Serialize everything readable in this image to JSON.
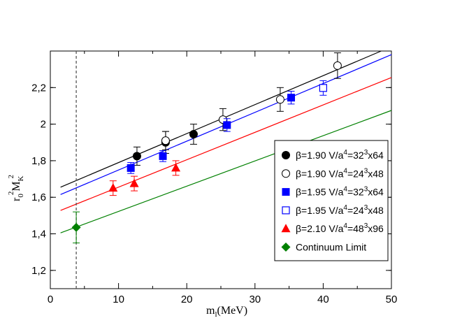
{
  "chart_data": {
    "type": "scatter",
    "xlabel": {
      "main": "m",
      "sub": "l",
      "suffix": "(MeV)"
    },
    "ylabel": {
      "r": "r",
      "r_sub": "0",
      "r_sup": "2",
      "m": "M",
      "m_sub": "K",
      "m_sup": "2"
    },
    "xlim": [
      0,
      50
    ],
    "ylim": [
      1.1,
      2.4
    ],
    "xticks": [
      0,
      10,
      20,
      30,
      40,
      50
    ],
    "xtick_labels": [
      "0",
      "10",
      "20",
      "30",
      "40",
      "50"
    ],
    "yticks": [
      1.2,
      1.4,
      1.6,
      1.8,
      2.0,
      2.2
    ],
    "ytick_labels": [
      "1,2",
      "1,4",
      "1,6",
      "1,8",
      "2",
      "2,2"
    ],
    "vline_x": 3.8,
    "fit_lines": [
      {
        "name": "fit-beta-1.90",
        "color": "#000000",
        "x": [
          1.5,
          48.5
        ],
        "y": [
          1.655,
          2.4
        ]
      },
      {
        "name": "fit-beta-1.95",
        "color": "#0000ff",
        "x": [
          1.5,
          50
        ],
        "y": [
          1.615,
          2.38
        ]
      },
      {
        "name": "fit-beta-2.10",
        "color": "#ff0000",
        "x": [
          1.5,
          50
        ],
        "y": [
          1.528,
          2.255
        ]
      },
      {
        "name": "fit-continuum",
        "color": "#008000",
        "x": [
          1.5,
          50
        ],
        "y": [
          1.405,
          2.075
        ]
      }
    ],
    "series": [
      {
        "name": "beta190-32",
        "marker": "circle-filled",
        "color": "#000000",
        "points": [
          {
            "x": 12.7,
            "y": 1.825,
            "err": 0.05
          },
          {
            "x": 16.9,
            "y": 1.9,
            "err": 0.06
          },
          {
            "x": 21.0,
            "y": 1.945,
            "err": 0.055
          }
        ]
      },
      {
        "name": "beta190-24",
        "marker": "circle-open",
        "color": "#000000",
        "points": [
          {
            "x": 16.9,
            "y": 1.91,
            "err": 0.05
          },
          {
            "x": 25.3,
            "y": 2.025,
            "err": 0.06
          },
          {
            "x": 33.7,
            "y": 2.135,
            "err": 0.065
          },
          {
            "x": 42.1,
            "y": 2.32,
            "err": 0.07
          }
        ]
      },
      {
        "name": "beta195-32",
        "marker": "square-filled",
        "color": "#0000ff",
        "points": [
          {
            "x": 11.8,
            "y": 1.76,
            "err": 0.03
          },
          {
            "x": 16.5,
            "y": 1.825,
            "err": 0.03
          },
          {
            "x": 25.9,
            "y": 1.995,
            "err": 0.035
          },
          {
            "x": 35.3,
            "y": 2.145,
            "err": 0.035
          }
        ]
      },
      {
        "name": "beta195-24",
        "marker": "square-open",
        "color": "#0000ff",
        "points": [
          {
            "x": 40.0,
            "y": 2.198,
            "err": 0.04
          }
        ]
      },
      {
        "name": "beta210-48",
        "marker": "triangle-filled",
        "color": "#ff0000",
        "points": [
          {
            "x": 9.2,
            "y": 1.65,
            "err": 0.04
          },
          {
            "x": 12.3,
            "y": 1.675,
            "err": 0.04
          },
          {
            "x": 18.4,
            "y": 1.76,
            "err": 0.04
          }
        ]
      },
      {
        "name": "continuum",
        "marker": "diamond-filled",
        "color": "#008000",
        "points": [
          {
            "x": 3.8,
            "y": 1.435,
            "err": 0.085
          }
        ]
      }
    ],
    "legend": {
      "placement": "lower-right",
      "entries": [
        {
          "series": "beta190-32",
          "beta": "β=1.90 V/a",
          "vexp": "4",
          "eq": "=32",
          "lexp": "3",
          "tail": "x64"
        },
        {
          "series": "beta190-24",
          "beta": "β=1.90 V/a",
          "vexp": "4",
          "eq": "=24",
          "lexp": "3",
          "tail": "x48"
        },
        {
          "series": "beta195-32",
          "beta": "β=1.95 V/a",
          "vexp": "4",
          "eq": "=32",
          "lexp": "3",
          "tail": "x64"
        },
        {
          "series": "beta195-24",
          "beta": "β=1.95 V/a",
          "vexp": "4",
          "eq": "=24",
          "lexp": "3",
          "tail": "x48"
        },
        {
          "series": "beta210-48",
          "beta": "β=2.10 V/a",
          "vexp": "4",
          "eq": "=48",
          "lexp": "3",
          "tail": "x96"
        },
        {
          "series": "continuum",
          "text": "Continuum Limit"
        }
      ]
    }
  }
}
